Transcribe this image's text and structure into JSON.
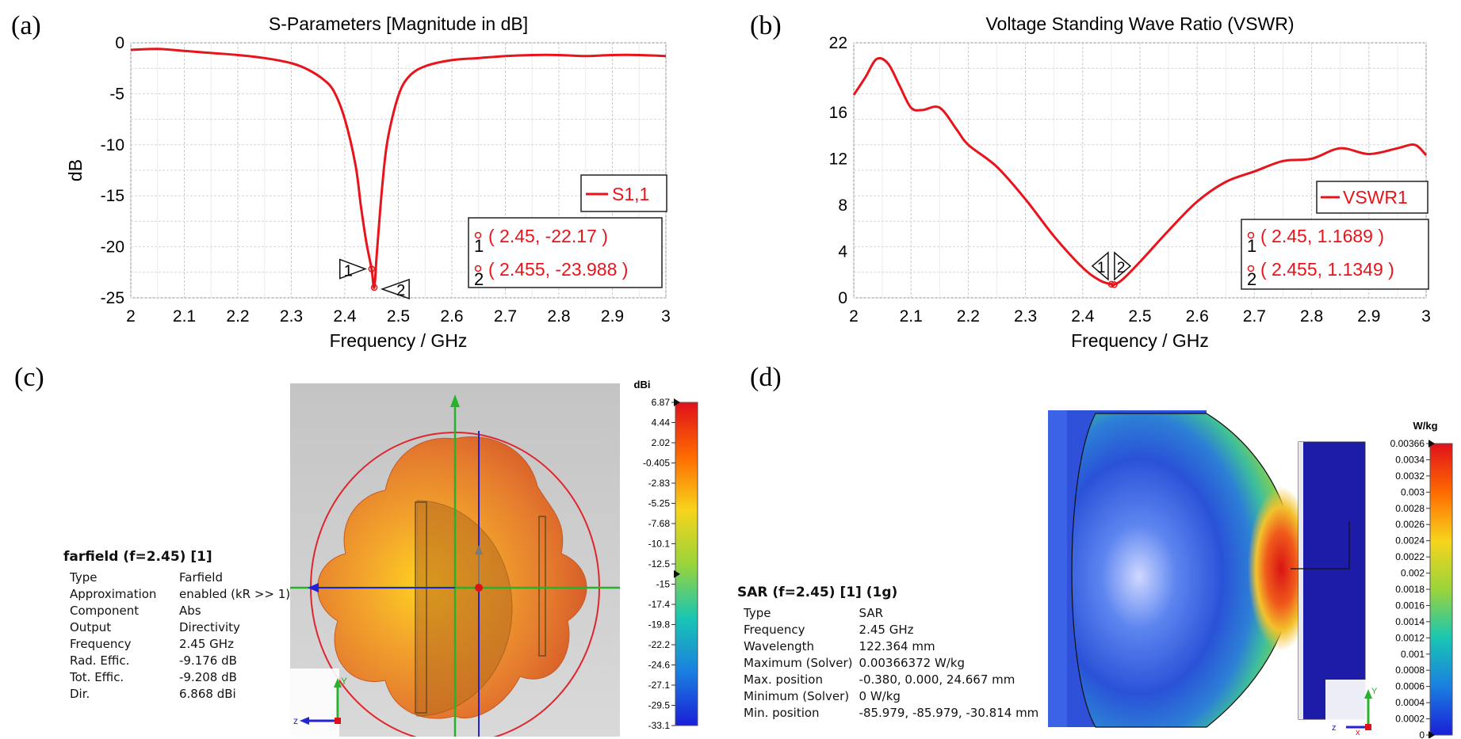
{
  "panel_labels": [
    "(a)",
    "(b)",
    "(c)",
    "(d)"
  ],
  "chart_data": [
    {
      "type": "line",
      "title": "S-Parameters [Magnitude in dB]",
      "xlabel": "Frequency / GHz",
      "ylabel": "dB",
      "xlim": [
        2,
        3
      ],
      "ylim": [
        -25,
        0
      ],
      "xticks": [
        "2",
        "2.1",
        "2.2",
        "2.3",
        "2.4",
        "2.5",
        "2.6",
        "2.7",
        "2.8",
        "2.9",
        "3"
      ],
      "yticks": [
        "0",
        "-5",
        "-10",
        "-15",
        "-20",
        "-25"
      ],
      "grid": true,
      "legend_position": "right",
      "series": [
        {
          "name": "S1,1",
          "color": "#e8141b",
          "x": [
            2.0,
            2.05,
            2.1,
            2.15,
            2.2,
            2.25,
            2.3,
            2.33,
            2.36,
            2.38,
            2.4,
            2.42,
            2.43,
            2.44,
            2.45,
            2.455,
            2.46,
            2.47,
            2.48,
            2.5,
            2.52,
            2.55,
            2.6,
            2.65,
            2.7,
            2.75,
            2.8,
            2.85,
            2.9,
            2.95,
            3.0
          ],
          "y": [
            -0.7,
            -0.6,
            -0.8,
            -1.0,
            -1.2,
            -1.5,
            -2.0,
            -2.6,
            -3.6,
            -4.8,
            -7.5,
            -12.0,
            -16.0,
            -19.5,
            -22.17,
            -23.988,
            -20.5,
            -14.0,
            -9.5,
            -5.2,
            -3.3,
            -2.3,
            -1.7,
            -1.5,
            -1.3,
            -1.2,
            -1.2,
            -1.3,
            -1.2,
            -1.2,
            -1.3
          ]
        }
      ],
      "markers": [
        {
          "id": "1",
          "x": 2.45,
          "y": -22.17,
          "label": "( 2.45, -22.17 )"
        },
        {
          "id": "2",
          "x": 2.455,
          "y": -23.988,
          "label": "( 2.455, -23.988 )"
        }
      ]
    },
    {
      "type": "line",
      "title": "Voltage Standing Wave Ratio (VSWR)",
      "xlabel": "Frequency / GHz",
      "ylabel": "",
      "xlim": [
        2,
        3
      ],
      "ylim": [
        0,
        22
      ],
      "xticks": [
        "2",
        "2.1",
        "2.2",
        "2.3",
        "2.4",
        "2.5",
        "2.6",
        "2.7",
        "2.8",
        "2.9",
        "3"
      ],
      "yticks": [
        "22",
        "16",
        "12",
        "8",
        "4",
        "0"
      ],
      "ytick_values": [
        22,
        16,
        12,
        8,
        4,
        0
      ],
      "grid": true,
      "legend_position": "right",
      "series": [
        {
          "name": "VSWR1",
          "color": "#e8141b",
          "x": [
            2.0,
            2.02,
            2.04,
            2.06,
            2.08,
            2.1,
            2.12,
            2.15,
            2.18,
            2.2,
            2.25,
            2.3,
            2.35,
            2.4,
            2.43,
            2.45,
            2.455,
            2.47,
            2.5,
            2.55,
            2.6,
            2.65,
            2.7,
            2.75,
            2.8,
            2.85,
            2.9,
            2.95,
            2.98,
            3.0
          ],
          "y": [
            17.5,
            19.0,
            20.6,
            20.2,
            18.3,
            16.4,
            16.2,
            16.4,
            14.5,
            13.2,
            11.3,
            8.5,
            5.3,
            2.6,
            1.5,
            1.1689,
            1.1349,
            1.6,
            3.1,
            5.8,
            8.3,
            10.0,
            10.9,
            11.8,
            12.0,
            12.9,
            12.4,
            12.9,
            13.2,
            12.3
          ]
        }
      ],
      "markers": [
        {
          "id": "1",
          "x": 2.45,
          "y": 1.1689,
          "label": "( 2.45, 1.1689 )"
        },
        {
          "id": "2",
          "x": 2.455,
          "y": 1.1349,
          "label": "( 2.455, 1.1349 )"
        }
      ]
    },
    {
      "type": "heatmap",
      "colorbar_unit": "dBi",
      "colorbar_ticks": [
        "6.87",
        "4.44",
        "2.02",
        "-0.405",
        "-2.83",
        "-5.25",
        "-7.68",
        "-10.1",
        "-12.5",
        "-15",
        "-17.4",
        "-19.8",
        "-22.2",
        "-24.6",
        "-27.1",
        "-29.5",
        "-33.1"
      ],
      "colors": [
        "#e0101a",
        "#ff6a00",
        "#f7d41c",
        "#9ad43a",
        "#19c6b3",
        "#1a7fe0",
        "#1a1fd8"
      ]
    },
    {
      "type": "heatmap",
      "colorbar_unit": "W/kg",
      "colorbar_ticks": [
        "0.00366",
        "0.0034",
        "0.0032",
        "0.003",
        "0.0028",
        "0.0026",
        "0.0024",
        "0.0022",
        "0.002",
        "0.0018",
        "0.0016",
        "0.0014",
        "0.0012",
        "0.001",
        "0.0008",
        "0.0006",
        "0.0004",
        "0.0002",
        "0"
      ],
      "colors": [
        "#e0101a",
        "#ff6a00",
        "#f7d41c",
        "#9ad43a",
        "#19c6b3",
        "#1a7fe0",
        "#1a1fd8"
      ]
    }
  ],
  "farfield_info": {
    "title": "farfield (f=2.45) [1]",
    "rows": [
      {
        "k": "Type",
        "v": "Farfield"
      },
      {
        "k": "Approximation",
        "v": "enabled (kR >> 1)"
      },
      {
        "k": "Component",
        "v": "Abs"
      },
      {
        "k": "Output",
        "v": "Directivity"
      },
      {
        "k": "Frequency",
        "v": "2.45 GHz"
      },
      {
        "k": "Rad. Effic.",
        "v": "-9.176 dB"
      },
      {
        "k": "Tot. Effic.",
        "v": "-9.208 dB"
      },
      {
        "k": "Dir.",
        "v": "6.868 dBi"
      }
    ]
  },
  "sar_info": {
    "title": "SAR (f=2.45) [1] (1g)",
    "rows": [
      {
        "k": "Type",
        "v": "SAR"
      },
      {
        "k": "Frequency",
        "v": "2.45 GHz"
      },
      {
        "k": "Wavelength",
        "v": "122.364 mm"
      },
      {
        "k": "Maximum (Solver)",
        "v": "0.00366372 W/kg"
      },
      {
        "k": "Max. position",
        "v": "-0.380,    0.000,    24.667 mm"
      },
      {
        "k": "Minimum (Solver)",
        "v": "0 W/kg"
      },
      {
        "k": "Min. position",
        "v": "-85.979,   -85.979,   -30.814 mm"
      }
    ]
  },
  "axis_letters": {
    "y": "Y",
    "z": "z",
    "x": "x"
  }
}
